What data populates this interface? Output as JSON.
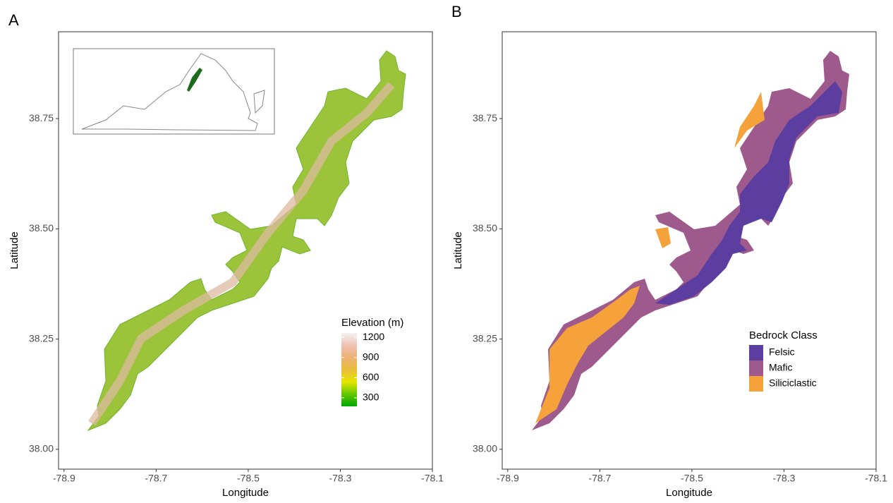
{
  "chart_data": [
    {
      "type": "map",
      "panel_label": "A",
      "x_label": "Longitude",
      "y_label": "Latitude",
      "xlim": [
        -78.912,
        -78.1
      ],
      "ylim": [
        37.955,
        38.947
      ],
      "xticks": [
        -78.9,
        -78.7,
        -78.5,
        -78.3,
        -78.1
      ],
      "yticks": [
        {
          "value": 38,
          "label": "38.00"
        },
        38.25,
        {
          "value": 38.5,
          "label": "38.50"
        },
        38.75
      ],
      "legend": {
        "type": "colorbar",
        "title": "Elevation (m)",
        "limits": [
          173,
          1264
        ],
        "ticks": [
          300,
          600,
          900,
          1200
        ],
        "colors": [
          "#00a600",
          "#63c600",
          "#e6e600",
          "#e9bd3a",
          "#ecb176",
          "#efc2b3",
          "#f2f2f2"
        ]
      }
    },
    {
      "type": "map",
      "panel_label": "B",
      "x_label": "Longitude",
      "y_label": "Latitude",
      "xlim": [
        -78.912,
        -78.1
      ],
      "ylim": [
        37.955,
        38.947
      ],
      "xticks": [
        -78.9,
        -78.7,
        -78.5,
        -78.3,
        -78.1
      ],
      "yticks": [
        {
          "value": 38,
          "label": "38.00"
        },
        38.25,
        {
          "value": 38.5,
          "label": "38.50"
        },
        38.75
      ],
      "legend": {
        "type": "classes",
        "title": "Bedrock Class",
        "names": [
          "Felsic",
          "Mafic",
          "Siliciclastic"
        ],
        "colors": [
          "#5b3ea0",
          "#9e5a8c",
          "#f5a23a"
        ]
      }
    }
  ]
}
